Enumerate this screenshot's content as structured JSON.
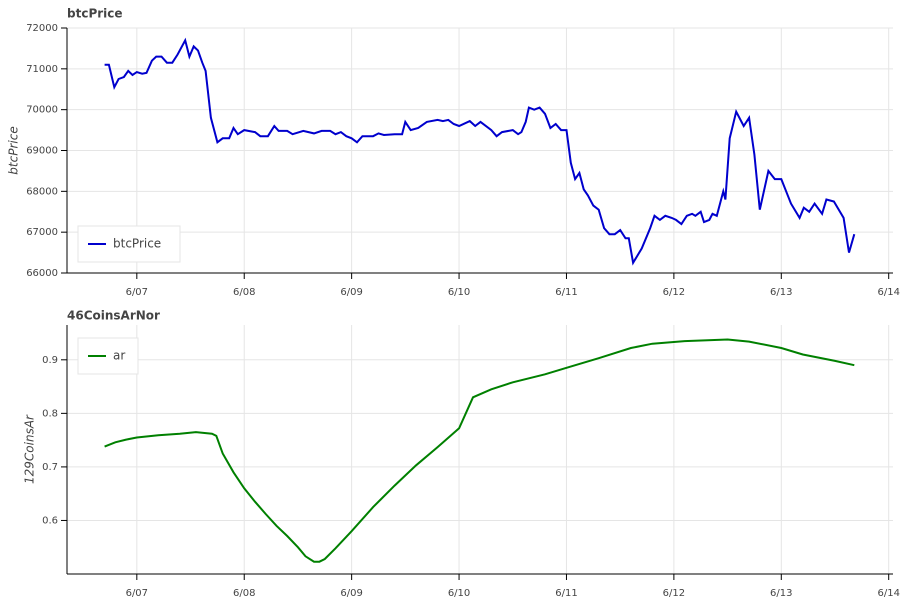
{
  "chart_data": [
    {
      "type": "line",
      "title": "btcPrice",
      "y_label": "btcPrice",
      "xlim": [
        6.35,
        14.04
      ],
      "ylim": [
        66000,
        72000
      ],
      "xticks": [
        {
          "value": 7,
          "label": "6/07"
        },
        {
          "value": 8,
          "label": "6/08"
        },
        {
          "value": 9,
          "label": "6/09"
        },
        {
          "value": 10,
          "label": "6/10"
        },
        {
          "value": 11,
          "label": "6/11"
        },
        {
          "value": 12,
          "label": "6/12"
        },
        {
          "value": 13,
          "label": "6/13"
        },
        {
          "value": 14,
          "label": "6/14"
        }
      ],
      "yticks": [
        66000,
        67000,
        68000,
        69000,
        70000,
        71000,
        72000
      ],
      "grid": true,
      "legend": "bottom-left",
      "x": [
        6.7,
        6.74,
        6.79,
        6.83,
        6.88,
        6.92,
        6.96,
        7.0,
        7.05,
        7.09,
        7.14,
        7.18,
        7.23,
        7.28,
        7.33,
        7.38,
        7.45,
        7.49,
        7.53,
        7.57,
        7.61,
        7.64,
        7.69,
        7.75,
        7.8,
        7.86,
        7.9,
        7.94,
        8.0,
        8.1,
        8.15,
        8.22,
        8.28,
        8.32,
        8.4,
        8.45,
        8.55,
        8.65,
        8.72,
        8.8,
        8.85,
        8.9,
        8.95,
        9.0,
        9.05,
        9.1,
        9.2,
        9.25,
        9.3,
        9.4,
        9.47,
        9.5,
        9.55,
        9.62,
        9.7,
        9.8,
        9.85,
        9.9,
        9.95,
        10.0,
        10.1,
        10.15,
        10.2,
        10.3,
        10.35,
        10.4,
        10.5,
        10.55,
        10.58,
        10.62,
        10.65,
        10.7,
        10.75,
        10.8,
        10.85,
        10.9,
        10.95,
        11.0,
        11.04,
        11.08,
        11.12,
        11.16,
        11.2,
        11.25,
        11.3,
        11.35,
        11.4,
        11.45,
        11.5,
        11.55,
        11.58,
        11.62,
        11.7,
        11.78,
        11.82,
        11.87,
        11.92,
        11.98,
        12.02,
        12.07,
        12.12,
        12.17,
        12.2,
        12.25,
        12.28,
        12.33,
        12.36,
        12.4,
        12.46,
        12.48,
        12.52,
        12.58,
        12.65,
        12.7,
        12.75,
        12.8,
        12.88,
        12.94,
        13.0,
        13.09,
        13.17,
        13.21,
        13.26,
        13.31,
        13.38,
        13.42,
        13.49,
        13.58,
        13.63,
        13.68
      ],
      "series": [
        {
          "name": "btcPrice",
          "color": "#0000cd",
          "values": [
            71100,
            71100,
            70550,
            70750,
            70800,
            70950,
            70850,
            70920,
            70880,
            70900,
            71200,
            71300,
            71300,
            71150,
            71150,
            71350,
            71700,
            71300,
            71550,
            71450,
            71150,
            70950,
            69800,
            69200,
            69300,
            69300,
            69550,
            69400,
            69500,
            69450,
            69350,
            69350,
            69600,
            69480,
            69480,
            69400,
            69480,
            69420,
            69480,
            69480,
            69400,
            69450,
            69350,
            69300,
            69200,
            69350,
            69350,
            69420,
            69380,
            69400,
            69400,
            69700,
            69500,
            69550,
            69700,
            69750,
            69720,
            69750,
            69650,
            69600,
            69720,
            69600,
            69700,
            69500,
            69350,
            69450,
            69500,
            69400,
            69450,
            69700,
            70050,
            70000,
            70050,
            69900,
            69550,
            69650,
            69500,
            69500,
            68700,
            68300,
            68450,
            68050,
            67900,
            67650,
            67550,
            67100,
            66950,
            66950,
            67050,
            66850,
            66850,
            66250,
            66600,
            67100,
            67400,
            67300,
            67400,
            67350,
            67300,
            67200,
            67400,
            67450,
            67400,
            67500,
            67250,
            67300,
            67450,
            67400,
            68000,
            67800,
            69300,
            69950,
            69600,
            69800,
            68900,
            67550,
            68500,
            68300,
            68300,
            67700,
            67350,
            67600,
            67500,
            67700,
            67450,
            67800,
            67750,
            67350,
            66500,
            66950
          ]
        }
      ]
    },
    {
      "type": "line",
      "title": "46CoinsArNor",
      "y_label": "129CoinsAr",
      "xlim": [
        6.35,
        14.04
      ],
      "ylim": [
        0.5,
        0.965
      ],
      "xticks": [
        {
          "value": 7,
          "label": "6/07"
        },
        {
          "value": 8,
          "label": "6/08"
        },
        {
          "value": 9,
          "label": "6/09"
        },
        {
          "value": 10,
          "label": "6/10"
        },
        {
          "value": 11,
          "label": "6/11"
        },
        {
          "value": 12,
          "label": "6/12"
        },
        {
          "value": 13,
          "label": "6/13"
        },
        {
          "value": 14,
          "label": "6/14"
        }
      ],
      "yticks": [
        0.6,
        0.7,
        0.8,
        0.9
      ],
      "grid": true,
      "legend": "top-left",
      "x": [
        6.7,
        6.8,
        6.9,
        7.0,
        7.2,
        7.4,
        7.55,
        7.7,
        7.74,
        7.8,
        7.9,
        8.0,
        8.1,
        8.2,
        8.3,
        8.4,
        8.5,
        8.57,
        8.65,
        8.7,
        8.75,
        8.85,
        9.0,
        9.2,
        9.4,
        9.6,
        9.8,
        10.0,
        10.13,
        10.3,
        10.5,
        10.8,
        11.0,
        11.3,
        11.6,
        11.8,
        12.1,
        12.5,
        12.7,
        13.0,
        13.2,
        13.5,
        13.68
      ],
      "series": [
        {
          "name": "ar",
          "color": "#008000",
          "values": [
            0.738,
            0.746,
            0.751,
            0.755,
            0.759,
            0.762,
            0.765,
            0.762,
            0.758,
            0.725,
            0.69,
            0.66,
            0.635,
            0.612,
            0.59,
            0.571,
            0.55,
            0.533,
            0.523,
            0.523,
            0.528,
            0.548,
            0.58,
            0.625,
            0.665,
            0.703,
            0.737,
            0.772,
            0.83,
            0.845,
            0.858,
            0.873,
            0.885,
            0.903,
            0.922,
            0.93,
            0.935,
            0.938,
            0.934,
            0.922,
            0.91,
            0.898,
            0.89
          ]
        }
      ]
    }
  ]
}
